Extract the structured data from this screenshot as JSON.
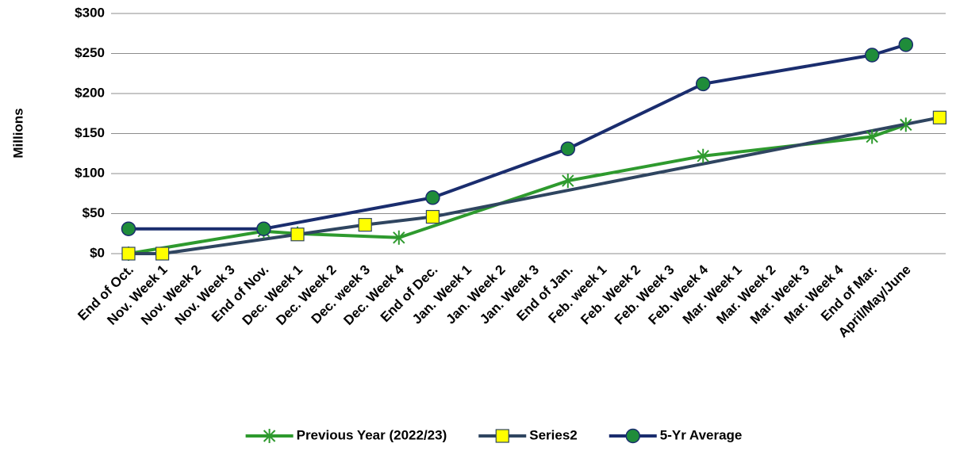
{
  "chart_data": {
    "type": "line",
    "y_label": "Millions",
    "categories": [
      "End of Oct.",
      "Nov. Week 1",
      "Nov. Week 2",
      "Nov. Week 3",
      "End of Nov.",
      "Dec. Week 1",
      "Dec. Week 2",
      "Dec. week 3",
      "Dec. Week 4",
      "End of Dec.",
      "Jan. Week 1",
      "Jan. Week 2",
      "Jan. Week 3",
      "End of Jan.",
      "Feb. week 1",
      "Feb. Week 2",
      "Feb. Week 3",
      "Feb. Week 4",
      "Mar. Week 1",
      "Mar. Week 2",
      "Mar.  Week 3",
      "Mar. Week 4",
      "End of Mar.",
      "April/May/June",
      null
    ],
    "series": [
      {
        "name": "Previous Year (2022/23)",
        "color": "#2e9a2e",
        "marker": "star",
        "marker_color": "#2e9a2e",
        "values": [
          0,
          null,
          null,
          null,
          28,
          25,
          null,
          null,
          20,
          null,
          null,
          null,
          null,
          91,
          null,
          null,
          null,
          122,
          null,
          null,
          null,
          null,
          146,
          161,
          null
        ]
      },
      {
        "name": "Series2",
        "color": "#2f4560",
        "marker": "square",
        "marker_color": "#ffff00",
        "values": [
          0,
          0,
          null,
          null,
          null,
          24,
          null,
          36,
          null,
          46,
          null,
          null,
          null,
          null,
          null,
          null,
          null,
          null,
          null,
          null,
          null,
          null,
          null,
          null,
          170
        ]
      },
      {
        "name": "5-Yr Average",
        "color": "#1a2d6e",
        "marker": "circle",
        "marker_color": "#1f8c3a",
        "values": [
          31,
          null,
          null,
          null,
          31,
          null,
          null,
          null,
          null,
          70,
          null,
          null,
          null,
          131,
          null,
          null,
          null,
          212,
          null,
          null,
          null,
          null,
          248,
          261,
          null
        ]
      }
    ],
    "span_gaps": true,
    "ylim": [
      0,
      300
    ],
    "yticks": [
      {
        "value": 0,
        "label": "$0"
      },
      {
        "value": 50,
        "label": "$50"
      },
      {
        "value": 100,
        "label": "$100"
      },
      {
        "value": 150,
        "label": "$150"
      },
      {
        "value": 200,
        "label": "$200"
      },
      {
        "value": 250,
        "label": "$250"
      },
      {
        "value": 300,
        "label": "$300"
      }
    ],
    "grid": true,
    "legend": "bottom"
  }
}
